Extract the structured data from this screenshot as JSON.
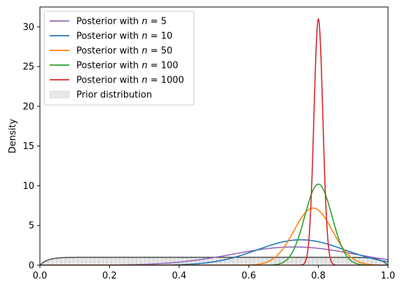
{
  "chart_data": {
    "type": "line",
    "title": "",
    "xlabel": "",
    "ylabel": "Density",
    "xlim": [
      0.0,
      1.0
    ],
    "ylim": [
      0,
      32.5
    ],
    "xticks": [
      0.0,
      0.2,
      0.4,
      0.6,
      0.8,
      1.0
    ],
    "xtick_labels": [
      "0.0",
      "0.2",
      "0.4",
      "0.6",
      "0.8",
      "1.0"
    ],
    "yticks": [
      0,
      5,
      10,
      15,
      20,
      25,
      30
    ],
    "ytick_labels": [
      "0",
      "5",
      "10",
      "15",
      "20",
      "25",
      "30"
    ],
    "grid": false,
    "legend_position": "top-left",
    "prior": {
      "name": "Prior distribution",
      "density": 1.0,
      "color": "#555555",
      "fill": "#e8e8e8"
    },
    "series": [
      {
        "name": "Posterior with n = 5",
        "label_prefix": "Posterior with ",
        "label_var": "n",
        "label_rest": " = 5",
        "color": "#9467bd",
        "mean": 0.73,
        "sd": 0.175,
        "peak": 2.3
      },
      {
        "name": "Posterior with n = 10",
        "label_prefix": "Posterior with ",
        "label_var": "n",
        "label_rest": " = 10",
        "color": "#1f77b4",
        "mean": 0.75,
        "sd": 0.125,
        "peak": 3.2
      },
      {
        "name": "Posterior with n = 50",
        "label_prefix": "Posterior with ",
        "label_var": "n",
        "label_rest": " = 50",
        "color": "#ff7f0e",
        "mean": 0.785,
        "sd": 0.055,
        "peak": 7.2
      },
      {
        "name": "Posterior with n = 100",
        "label_prefix": "Posterior with ",
        "label_var": "n",
        "label_rest": " = 100",
        "color": "#2ca02c",
        "mean": 0.8,
        "sd": 0.039,
        "peak": 10.2
      },
      {
        "name": "Posterior with n = 1000",
        "label_prefix": "Posterior with ",
        "label_var": "n",
        "label_rest": " = 1000",
        "color": "#d62728",
        "mean": 0.8,
        "sd": 0.0128,
        "peak": 31.0
      }
    ]
  }
}
